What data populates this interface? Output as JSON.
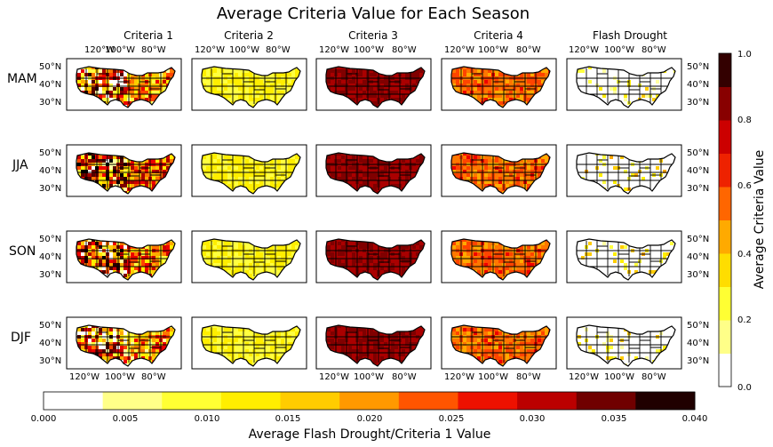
{
  "title": "Average Criteria Value for Each Season",
  "columns": [
    "Criteria 1",
    "Criteria 2",
    "Criteria 3",
    "Criteria 4",
    "Flash Drought"
  ],
  "rows": [
    "MAM",
    "JJA",
    "SON",
    "DJF"
  ],
  "lon_ticks": [
    "120°W",
    "100°W",
    "80°W"
  ],
  "lat_ticks": [
    "50°N",
    "40°N",
    "30°N"
  ],
  "colorbar_right": {
    "label": "Average Criteria Value",
    "ticks": [
      "0.0",
      "0.2",
      "0.4",
      "0.6",
      "0.8",
      "1.0"
    ]
  },
  "colorbar_bottom": {
    "label": "Average Flash Drought/Criteria 1 Value",
    "ticks": [
      "0.000",
      "0.005",
      "0.010",
      "0.015",
      "0.020",
      "0.025",
      "0.030",
      "0.035",
      "0.040"
    ]
  },
  "colors": {
    "palette": [
      "#ffffff",
      "#ffffa0",
      "#ffff40",
      "#ffee00",
      "#ffcc00",
      "#ffaa00",
      "#ff7700",
      "#ff4400",
      "#ee0000",
      "#cc0000",
      "#aa0000",
      "#800000",
      "#550000",
      "#2a0000",
      "#000000"
    ],
    "border": "#000000"
  },
  "chart_data": {
    "type": "heatmap",
    "title": "Average Criteria Value for Each Season",
    "columns": [
      "Criteria 1",
      "Criteria 2",
      "Criteria 3",
      "Criteria 4",
      "Flash Drought"
    ],
    "rows": [
      "MAM",
      "JJA",
      "SON",
      "DJF"
    ],
    "colorbar_criteria": {
      "label": "Average Criteria Value",
      "range": [
        0.0,
        1.0
      ],
      "levels": 10
    },
    "colorbar_flash_drought": {
      "label": "Average Flash Drought/Criteria 1 Value",
      "range": [
        0.0,
        0.04
      ],
      "levels": 11
    },
    "typical_values": [
      [
        0.3,
        0.18,
        0.75,
        0.45,
        0.05
      ],
      [
        0.4,
        0.18,
        0.75,
        0.45,
        0.12
      ],
      [
        0.35,
        0.18,
        0.75,
        0.45,
        0.08
      ],
      [
        0.3,
        0.18,
        0.75,
        0.45,
        0.05
      ]
    ],
    "lon_range": [
      -130,
      -65
    ],
    "lat_range": [
      24,
      54
    ]
  }
}
